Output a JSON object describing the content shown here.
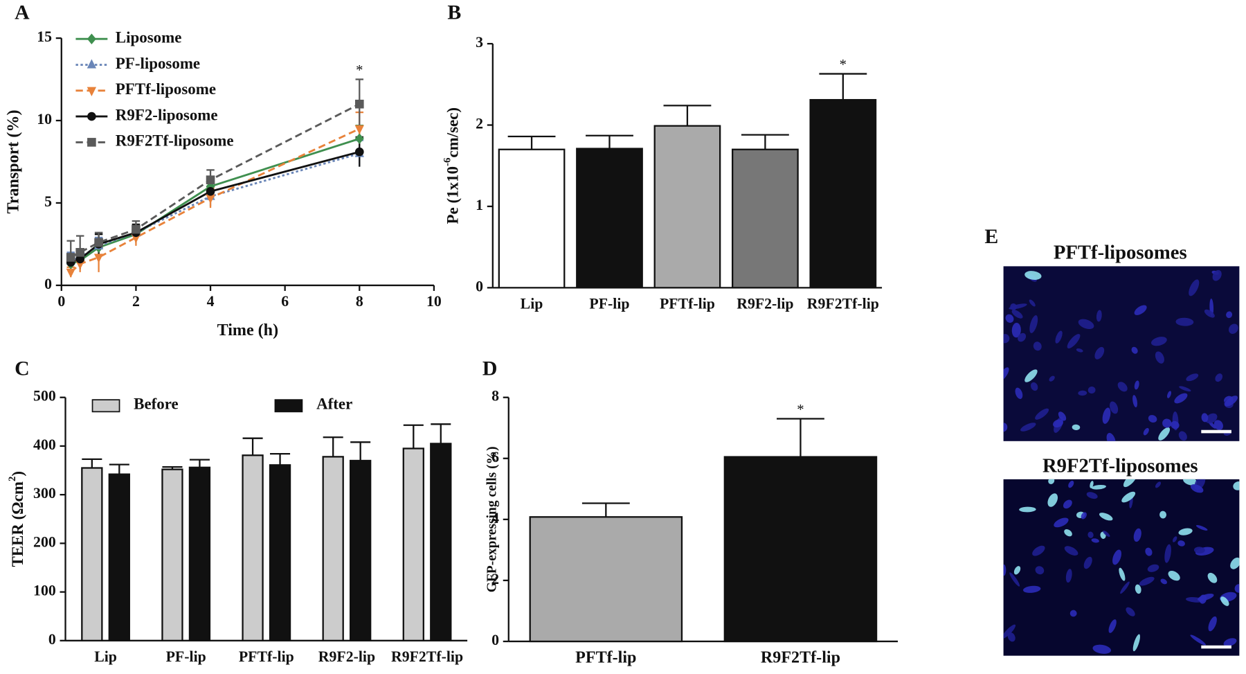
{
  "chart_data": [
    {
      "type": "line",
      "panel_label": "A",
      "xlabel": "Time (h)",
      "ylabel": "Transport (%)",
      "x": [
        0.25,
        0.5,
        1,
        2,
        4,
        8
      ],
      "xlim": [
        0,
        10
      ],
      "xticks": [
        0,
        2,
        4,
        6,
        8,
        10
      ],
      "ylim": [
        0,
        15
      ],
      "yticks": [
        0,
        5,
        10,
        15
      ],
      "series": [
        {
          "name": "Liposome",
          "color": "#3f8f4f",
          "line_style": "solid",
          "marker": "diamond",
          "values": [
            1.3,
            1.5,
            2.3,
            3.1,
            6.0,
            8.9
          ],
          "errors": [
            0.4,
            0.5,
            0.5,
            0.5,
            0.6,
            0.8
          ]
        },
        {
          "name": "PF-liposome",
          "color": "#6a86b8",
          "line_style": "dotted",
          "marker": "triangle",
          "values": [
            1.5,
            1.7,
            2.4,
            3.2,
            5.4,
            8.0
          ],
          "errors": [
            0.5,
            0.5,
            0.5,
            0.4,
            0.6,
            0.8
          ]
        },
        {
          "name": "PFTf-liposome",
          "color": "#e8823a",
          "line_style": "dashed",
          "marker": "triangle-down",
          "values": [
            0.8,
            1.3,
            1.7,
            2.9,
            5.3,
            9.5
          ],
          "errors": [
            0.3,
            0.5,
            0.9,
            0.5,
            0.6,
            1.0
          ]
        },
        {
          "name": "R9F2-liposome",
          "color": "#111111",
          "line_style": "solid",
          "marker": "circle",
          "values": [
            1.4,
            1.6,
            2.5,
            3.2,
            5.7,
            8.1
          ],
          "errors": [
            0.5,
            0.5,
            0.6,
            0.5,
            0.6,
            0.9
          ]
        },
        {
          "name": "R9F2Tf-liposome",
          "color": "#5a5a5a",
          "line_style": "dashed",
          "marker": "square",
          "values": [
            1.7,
            2.0,
            2.6,
            3.4,
            6.4,
            11.0
          ],
          "errors": [
            1.0,
            1.0,
            0.6,
            0.5,
            0.6,
            1.5
          ]
        }
      ],
      "significance": [
        {
          "x": 8,
          "series": "R9F2Tf-liposome",
          "label": "*"
        }
      ]
    },
    {
      "type": "bar",
      "panel_label": "B",
      "ylabel_parts": [
        "Pe (1x10",
        "-6",
        "cm/sec)"
      ],
      "categories": [
        "Lip",
        "PF-lip",
        "PFTf-lip",
        "R9F2-lip",
        "R9F2Tf-lip"
      ],
      "values": [
        1.7,
        1.71,
        1.99,
        1.7,
        2.31
      ],
      "errors": [
        0.16,
        0.16,
        0.25,
        0.18,
        0.32
      ],
      "colors": [
        "#ffffff",
        "#111111",
        "#aaaaaa",
        "#777777",
        "#111111"
      ],
      "ylim": [
        0,
        3
      ],
      "yticks": [
        0,
        1,
        2,
        3
      ],
      "significance": [
        {
          "category": "R9F2Tf-lip",
          "label": "*"
        }
      ]
    },
    {
      "type": "grouped_bar",
      "panel_label": "C",
      "ylabel_parts": [
        "TEER (Ωcm",
        "2",
        ")"
      ],
      "categories": [
        "Lip",
        "PF-lip",
        "PFTf-lip",
        "R9F2-lip",
        "R9F2Tf-lip"
      ],
      "series": [
        {
          "name": "Before",
          "color": "#cccccc",
          "values": [
            355,
            352,
            381,
            378,
            395
          ],
          "errors": [
            18,
            5,
            35,
            40,
            48
          ]
        },
        {
          "name": "After",
          "color": "#111111",
          "values": [
            342,
            356,
            361,
            370,
            405
          ],
          "errors": [
            20,
            16,
            23,
            38,
            40
          ]
        }
      ],
      "legend": "top",
      "ylim": [
        0,
        500
      ],
      "yticks": [
        0,
        100,
        200,
        300,
        400,
        500
      ]
    },
    {
      "type": "bar",
      "panel_label": "D",
      "ylabel": "GFP-expressing cells (%)",
      "categories": [
        "PFTf-lip",
        "R9F2Tf-lip"
      ],
      "values": [
        4.08,
        6.05
      ],
      "errors": [
        0.45,
        1.25
      ],
      "colors": [
        "#aaaaaa",
        "#111111"
      ],
      "ylim": [
        0,
        8
      ],
      "yticks": [
        0,
        2,
        4,
        6,
        8
      ],
      "significance": [
        {
          "category": "R9F2Tf-lip",
          "label": "*"
        }
      ]
    }
  ],
  "panel_e": {
    "label": "E",
    "images": [
      {
        "title": "PFTf-liposomes"
      },
      {
        "title": "R9F2Tf-liposomes"
      }
    ]
  }
}
